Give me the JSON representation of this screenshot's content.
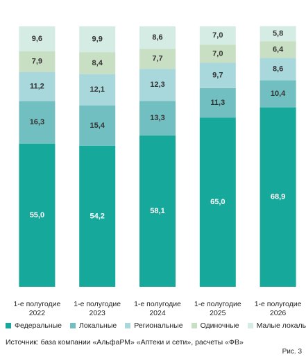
{
  "chart_data": {
    "type": "stacked-bar",
    "categories": [
      "1-е полугодие 2022",
      "1-е полугодие 2023",
      "1-е полугодие 2024",
      "1-е полугодие 2025",
      "1-е полугодие 2026"
    ],
    "ylim": [
      0,
      100
    ],
    "series": [
      {
        "name": "Федеральные",
        "color": "#16a89b",
        "values": [
          55.0,
          54.2,
          58.1,
          65.0,
          68.9
        ],
        "value_labels": [
          "55,0",
          "54,2",
          "58,1",
          "65,0",
          "68,9"
        ]
      },
      {
        "name": "Локальные",
        "color": "#72bfc1",
        "values": [
          16.3,
          15.4,
          13.3,
          11.3,
          10.4
        ],
        "value_labels": [
          "16,3",
          "15,4",
          "13,3",
          "11,3",
          "10,4"
        ]
      },
      {
        "name": "Региональные",
        "color": "#a9d8dc",
        "values": [
          11.2,
          12.1,
          12.3,
          9.7,
          8.6
        ],
        "value_labels": [
          "11,2",
          "12,1",
          "12,3",
          "9,7",
          "8,6"
        ]
      },
      {
        "name": "Одиночные",
        "color": "#c9dfc3",
        "values": [
          7.9,
          8.4,
          7.7,
          7.0,
          6.4
        ],
        "value_labels": [
          "7,9",
          "8,4",
          "7,7",
          "7,0",
          "6,4"
        ]
      },
      {
        "name": "Малые локальные",
        "color": "#d5ece5",
        "values": [
          9.6,
          9.9,
          8.6,
          7.0,
          5.8
        ],
        "value_labels": [
          "9,6",
          "9,9",
          "8,6",
          "7,0",
          "5,8"
        ]
      }
    ],
    "source": "Источник: база компании «АльфаРМ» «Аптеки и сети», расчеты «ФВ»",
    "figure": "Рис. 3"
  }
}
